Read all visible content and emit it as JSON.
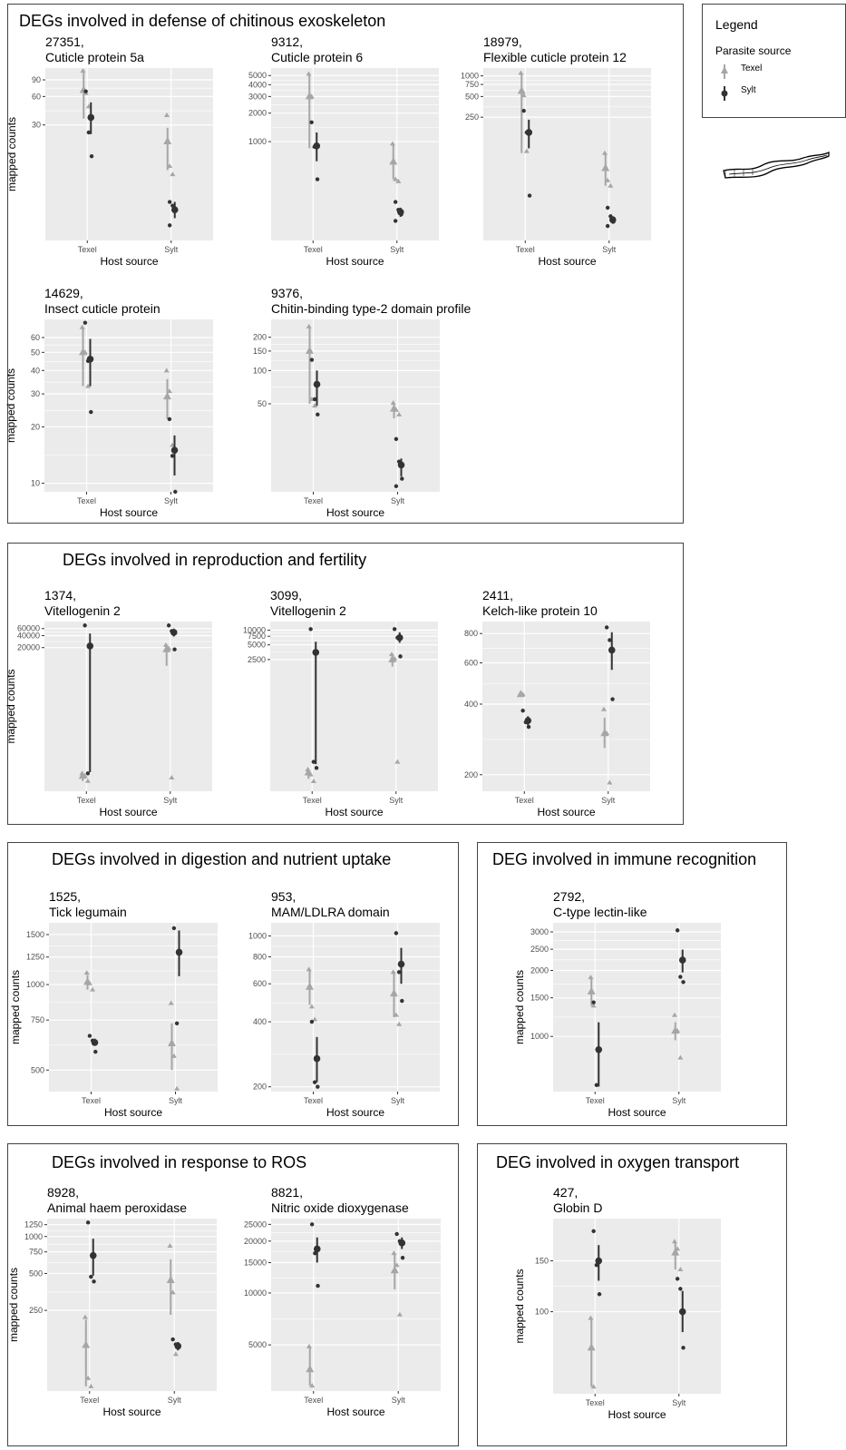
{
  "colors": {
    "texel": "#a6a6a6",
    "sylt": "#333333",
    "panel": "#ebebeb",
    "grid": "#ffffff"
  },
  "legend": {
    "title": "Legend",
    "subtitle": "Parasite source",
    "items": [
      {
        "label": "Texel",
        "color": "#a6a6a6",
        "shape": "triangle"
      },
      {
        "label": "Sylt",
        "color": "#333333",
        "shape": "circle"
      }
    ]
  },
  "sections": [
    {
      "title": "DEGs involved in defense of chitinous exoskeleton"
    },
    {
      "title": "DEGs involved in reproduction and fertility"
    },
    {
      "title": "DEGs involved in digestion and nutrient uptake"
    },
    {
      "title": "DEG involved in immune recognition"
    },
    {
      "title": "DEGs involved in response to ROS"
    },
    {
      "title": "DEG involved in oxygen transport"
    }
  ],
  "chart_data": [
    {
      "type": "scatter",
      "id": "27351",
      "name": "Cuticle protein 5a",
      "ylabel": "mapped counts",
      "xlabel": "Host source",
      "scale": "log",
      "ylim": [
        1.8,
        120
      ],
      "yticks": [
        90,
        60,
        30
      ],
      "categories": [
        "Texel",
        "Sylt"
      ],
      "texel": {
        "Texel": {
          "mean": 70,
          "lo": 35,
          "hi": 115,
          "pts": [
            112,
            65,
            47
          ]
        },
        "Sylt": {
          "mean": 20,
          "lo": 10,
          "hi": 28,
          "pts": [
            38,
            11,
            9
          ]
        }
      },
      "sylt": {
        "Texel": {
          "mean": 36,
          "lo": 24,
          "hi": 52,
          "pts": [
            68,
            25,
            14
          ]
        },
        "Sylt": {
          "mean": 3.8,
          "lo": 3.1,
          "hi": 4.6,
          "pts": [
            4.6,
            4.2,
            3.7,
            2.6
          ]
        }
      }
    },
    {
      "type": "scatter",
      "id": "9312",
      "name": "Cuticle protein 6",
      "ylabel": "",
      "xlabel": "Host source",
      "scale": "log",
      "ylim": [
        90,
        6000
      ],
      "yticks": [
        5000,
        4000,
        3000,
        2000,
        1000
      ],
      "categories": [
        "Texel",
        "Sylt"
      ],
      "texel": {
        "Texel": {
          "mean": 3000,
          "lo": 850,
          "hi": 5200,
          "pts": [
            5200,
            3000,
            900
          ]
        },
        "Sylt": {
          "mean": 610,
          "lo": 400,
          "hi": 950,
          "pts": [
            950,
            400,
            380
          ]
        }
      },
      "sylt": {
        "Texel": {
          "mean": 900,
          "lo": 620,
          "hi": 1250,
          "pts": [
            1600,
            880,
            400
          ]
        },
        "Sylt": {
          "mean": 180,
          "lo": 160,
          "hi": 200,
          "pts": [
            230,
            190,
            170,
            145
          ]
        }
      }
    },
    {
      "type": "scatter",
      "id": "18979",
      "name": "Flexible cuticle protein 12",
      "ylabel": "",
      "xlabel": "Host source",
      "scale": "log",
      "ylim": [
        4,
        1300
      ],
      "yticks": [
        1000,
        750,
        500,
        250
      ],
      "categories": [
        "Texel",
        "Sylt"
      ],
      "texel": {
        "Texel": {
          "mean": 600,
          "lo": 75,
          "hi": 1100,
          "pts": [
            1100,
            520,
            80
          ]
        },
        "Sylt": {
          "mean": 45,
          "lo": 25,
          "hi": 75,
          "pts": [
            75,
            30,
            25
          ]
        }
      },
      "sylt": {
        "Texel": {
          "mean": 150,
          "lo": 88,
          "hi": 230,
          "pts": [
            310,
            150,
            18
          ]
        },
        "Sylt": {
          "mean": 8,
          "lo": 7,
          "hi": 9,
          "pts": [
            12,
            9,
            7.5,
            6.5
          ]
        }
      }
    },
    {
      "type": "scatter",
      "id": "14629",
      "name": "Insect cuticle protein",
      "ylabel": "mapped counts",
      "xlabel": "Host source",
      "scale": "log",
      "ylim": [
        9,
        75
      ],
      "yticks": [
        60,
        50,
        40,
        30,
        20,
        10
      ],
      "categories": [
        "Texel",
        "Sylt"
      ],
      "texel": {
        "Texel": {
          "mean": 50,
          "lo": 33,
          "hi": 68,
          "pts": [
            68,
            50,
            33
          ]
        },
        "Sylt": {
          "mean": 29,
          "lo": 22,
          "hi": 36,
          "pts": [
            40,
            31,
            16
          ]
        }
      },
      "sylt": {
        "Texel": {
          "mean": 46,
          "lo": 33,
          "hi": 59,
          "pts": [
            72,
            45,
            24
          ]
        },
        "Sylt": {
          "mean": 15,
          "lo": 11,
          "hi": 18,
          "pts": [
            22,
            14,
            9
          ]
        }
      }
    },
    {
      "type": "scatter",
      "id": "9376",
      "name": "Chitin-binding type-2 domain profile",
      "ylabel": "",
      "xlabel": "Host source",
      "scale": "log",
      "ylim": [
        8,
        290
      ],
      "yticks": [
        200,
        150,
        100,
        50
      ],
      "categories": [
        "Texel",
        "Sylt"
      ],
      "texel": {
        "Texel": {
          "mean": 150,
          "lo": 50,
          "hi": 250,
          "pts": [
            250,
            55,
            48
          ]
        },
        "Sylt": {
          "mean": 45,
          "lo": 37,
          "hi": 51,
          "pts": [
            51,
            44,
            40
          ]
        }
      },
      "sylt": {
        "Texel": {
          "mean": 75,
          "lo": 48,
          "hi": 100,
          "pts": [
            125,
            55,
            40
          ]
        },
        "Sylt": {
          "mean": 14,
          "lo": 11,
          "hi": 16,
          "pts": [
            24,
            15,
            10.5,
            9
          ]
        }
      }
    },
    {
      "type": "scatter",
      "id": "1374",
      "name": "Vitellogenin 2",
      "ylabel": "mapped counts",
      "xlabel": "Host source",
      "scale": "log",
      "ylim": [
        5,
        90000
      ],
      "yticks": [
        60000,
        40000,
        20000
      ],
      "categories": [
        "Texel",
        "Sylt"
      ],
      "texel": {
        "Texel": {
          "mean": 12,
          "lo": 9,
          "hi": 14,
          "pts": [
            14,
            12,
            9
          ]
        },
        "Sylt": {
          "mean": 18000,
          "lo": 7000,
          "hi": 24000,
          "pts": [
            23000,
            19000,
            11
          ]
        }
      },
      "sylt": {
        "Texel": {
          "mean": 22000,
          "lo": 15,
          "hi": 45000,
          "pts": [
            72000,
            14
          ]
        },
        "Sylt": {
          "mean": 48000,
          "lo": 38000,
          "hi": 60000,
          "pts": [
            72000,
            52000,
            18000
          ]
        }
      }
    },
    {
      "type": "scatter",
      "id": "3099",
      "name": "Vitellogenin 2",
      "ylabel": "",
      "xlabel": "Host source",
      "scale": "log",
      "ylim": [
        5,
        15000
      ],
      "yticks": [
        10000,
        7500,
        5000,
        2500
      ],
      "categories": [
        "Texel",
        "Sylt"
      ],
      "texel": {
        "Texel": {
          "mean": 12,
          "lo": 9,
          "hi": 14,
          "pts": [
            14,
            11,
            8
          ]
        },
        "Sylt": {
          "mean": 2500,
          "lo": 1800,
          "hi": 3200,
          "pts": [
            3200,
            2600,
            20
          ]
        }
      },
      "sylt": {
        "Texel": {
          "mean": 3500,
          "lo": 18,
          "hi": 5800,
          "pts": [
            10500,
            20,
            15
          ]
        },
        "Sylt": {
          "mean": 7000,
          "lo": 5500,
          "hi": 9000,
          "pts": [
            10500,
            7000,
            2900
          ]
        }
      }
    },
    {
      "type": "scatter",
      "id": "2411",
      "name": "Kelch-like protein 10",
      "ylabel": "",
      "xlabel": "Host source",
      "scale": "log",
      "ylim": [
        170,
        900
      ],
      "yticks": [
        800,
        600,
        400,
        200
      ],
      "categories": [
        "Texel",
        "Sylt"
      ],
      "texel": {
        "Texel": {
          "mean": 440,
          "lo": 440,
          "hi": 440,
          "pts": [
            440,
            440
          ]
        },
        "Sylt": {
          "mean": 300,
          "lo": 260,
          "hi": 350,
          "pts": [
            380,
            300,
            185
          ]
        }
      },
      "sylt": {
        "Texel": {
          "mean": 340,
          "lo": 325,
          "hi": 355,
          "pts": [
            375,
            335,
            320
          ]
        },
        "Sylt": {
          "mean": 680,
          "lo": 560,
          "hi": 810,
          "pts": [
            850,
            750,
            420
          ]
        }
      }
    },
    {
      "type": "scatter",
      "id": "1525",
      "name": "Tick legumain",
      "ylabel": "mapped counts",
      "xlabel": "Host source",
      "scale": "log",
      "ylim": [
        420,
        1650
      ],
      "yticks": [
        1500,
        1250,
        1000,
        750,
        500
      ],
      "categories": [
        "Texel",
        "Sylt"
      ],
      "texel": {
        "Texel": {
          "mean": 1020,
          "lo": 960,
          "hi": 1080,
          "pts": [
            1100,
            1010,
            960
          ]
        },
        "Sylt": {
          "mean": 620,
          "lo": 500,
          "hi": 730,
          "pts": [
            860,
            560,
            430
          ]
        }
      },
      "sylt": {
        "Texel": {
          "mean": 625,
          "lo": 610,
          "hi": 645,
          "pts": [
            660,
            635,
            580
          ]
        },
        "Sylt": {
          "mean": 1300,
          "lo": 1070,
          "hi": 1550,
          "pts": [
            1580,
            730
          ]
        }
      }
    },
    {
      "type": "scatter",
      "id": "953",
      "name": "MAM/LDLRA domain",
      "ylabel": "",
      "xlabel": "Host source",
      "scale": "log",
      "ylim": [
        190,
        1150
      ],
      "yticks": [
        1000,
        800,
        600,
        400,
        200
      ],
      "categories": [
        "Texel",
        "Sylt"
      ],
      "texel": {
        "Texel": {
          "mean": 580,
          "lo": 480,
          "hi": 690,
          "pts": [
            700,
            470,
            410
          ]
        },
        "Sylt": {
          "mean": 540,
          "lo": 420,
          "hi": 680,
          "pts": [
            680,
            430,
            390
          ]
        }
      },
      "sylt": {
        "Texel": {
          "mean": 270,
          "lo": 210,
          "hi": 340,
          "pts": [
            400,
            210,
            200
          ]
        },
        "Sylt": {
          "mean": 740,
          "lo": 600,
          "hi": 880,
          "pts": [
            1030,
            680,
            500
          ]
        }
      }
    },
    {
      "type": "scatter",
      "id": "2792",
      "name": "C-type lectin-like",
      "ylabel": "mapped counts",
      "xlabel": "Host source",
      "scale": "log",
      "ylim": [
        560,
        3300
      ],
      "yticks": [
        3000,
        2500,
        2000,
        1500,
        1000
      ],
      "categories": [
        "Texel",
        "Sylt"
      ],
      "texel": {
        "Texel": {
          "mean": 1600,
          "lo": 1380,
          "hi": 1830,
          "pts": [
            1860,
            1380
          ]
        },
        "Sylt": {
          "mean": 1060,
          "lo": 960,
          "hi": 1160,
          "pts": [
            1250,
            1060,
            800
          ]
        }
      },
      "sylt": {
        "Texel": {
          "mean": 870,
          "lo": 590,
          "hi": 1160,
          "pts": [
            1430,
            600
          ]
        },
        "Sylt": {
          "mean": 2230,
          "lo": 1960,
          "hi": 2490,
          "pts": [
            3050,
            1870,
            1770
          ]
        }
      }
    },
    {
      "type": "scatter",
      "id": "8928",
      "name": "Animal haem peroxidase",
      "ylabel": "mapped counts",
      "xlabel": "Host source",
      "scale": "log",
      "ylim": [
        55,
        1400
      ],
      "yticks": [
        1250,
        1000,
        750,
        500,
        250
      ],
      "categories": [
        "Texel",
        "Sylt"
      ],
      "texel": {
        "Texel": {
          "mean": 130,
          "lo": 60,
          "hi": 210,
          "pts": [
            220,
            70,
            60
          ]
        },
        "Sylt": {
          "mean": 440,
          "lo": 230,
          "hi": 650,
          "pts": [
            840,
            350,
            110
          ]
        }
      },
      "sylt": {
        "Texel": {
          "mean": 700,
          "lo": 480,
          "hi": 960,
          "pts": [
            1300,
            470,
            430
          ]
        },
        "Sylt": {
          "mean": 128,
          "lo": 118,
          "hi": 138,
          "pts": [
            145,
            132,
            125
          ]
        }
      }
    },
    {
      "type": "scatter",
      "id": "8821",
      "name": "Nitric oxide dioxygenase",
      "ylabel": "",
      "xlabel": "Host source",
      "scale": "log",
      "ylim": [
        2700,
        27000
      ],
      "yticks": [
        25000,
        20000,
        15000,
        10000,
        5000
      ],
      "categories": [
        "Texel",
        "Sylt"
      ],
      "texel": {
        "Texel": {
          "mean": 3600,
          "lo": 2900,
          "hi": 4900,
          "pts": [
            4900,
            2900
          ]
        },
        "Sylt": {
          "mean": 13500,
          "lo": 10500,
          "hi": 17000,
          "pts": [
            17000,
            14500,
            7500
          ]
        }
      },
      "sylt": {
        "Texel": {
          "mean": 18000,
          "lo": 15000,
          "hi": 21000,
          "pts": [
            25000,
            17000,
            11000
          ]
        },
        "Sylt": {
          "mean": 19500,
          "lo": 18000,
          "hi": 21000,
          "pts": [
            22000,
            20000,
            16000
          ]
        }
      }
    },
    {
      "type": "scatter",
      "id": "427",
      "name": "Globin D",
      "ylabel": "mapped counts",
      "xlabel": "Host source",
      "scale": "log",
      "ylim": [
        52,
        210
      ],
      "yticks": [
        150,
        100
      ],
      "categories": [
        "Texel",
        "Sylt"
      ],
      "texel": {
        "Texel": {
          "mean": 75,
          "lo": 55,
          "hi": 95,
          "pts": [
            95,
            55
          ]
        },
        "Sylt": {
          "mean": 160,
          "lo": 140,
          "hi": 175,
          "pts": [
            175,
            165,
            140
          ]
        }
      },
      "sylt": {
        "Texel": {
          "mean": 150,
          "lo": 128,
          "hi": 170,
          "pts": [
            190,
            145,
            115
          ]
        },
        "Sylt": {
          "mean": 100,
          "lo": 85,
          "hi": 118,
          "pts": [
            130,
            120,
            75
          ]
        }
      }
    }
  ]
}
